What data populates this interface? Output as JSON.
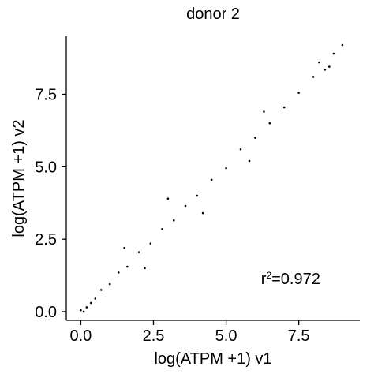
{
  "chart_data": {
    "type": "scatter",
    "title": "donor 2",
    "xlabel": "log(ATPM +1) v1",
    "ylabel": "log(ATPM +1) v2",
    "xlim": [
      -0.5,
      9.6
    ],
    "ylim": [
      -0.3,
      9.5
    ],
    "xticks": [
      0.0,
      2.5,
      5.0,
      7.5
    ],
    "yticks": [
      0.0,
      2.5,
      5.0,
      7.5
    ],
    "xtick_labels": [
      "0.0",
      "2.5",
      "5.0",
      "7.5"
    ],
    "ytick_labels": [
      "0.0",
      "2.5",
      "5.0",
      "7.5"
    ],
    "grid": false,
    "annotation": {
      "prefix": "r",
      "sup": "2",
      "rest": "=0.972",
      "x": 6.2,
      "y": 0.95
    },
    "point_color": "#000000",
    "series": [
      {
        "points": [
          [
            0.0,
            0.05
          ],
          [
            0.1,
            0.0
          ],
          [
            0.2,
            0.15
          ],
          [
            0.35,
            0.3
          ],
          [
            0.5,
            0.45
          ],
          [
            0.7,
            0.75
          ],
          [
            1.0,
            0.95
          ],
          [
            1.3,
            1.35
          ],
          [
            1.6,
            1.55
          ],
          [
            2.0,
            2.05
          ],
          [
            2.4,
            2.35
          ],
          [
            2.8,
            2.85
          ],
          [
            3.2,
            3.15
          ],
          [
            3.6,
            3.65
          ],
          [
            4.0,
            4.0
          ],
          [
            4.5,
            4.55
          ],
          [
            5.0,
            4.95
          ],
          [
            5.5,
            5.6
          ],
          [
            6.0,
            6.0
          ],
          [
            6.5,
            6.5
          ],
          [
            7.0,
            7.05
          ],
          [
            7.5,
            7.55
          ],
          [
            8.0,
            8.1
          ],
          [
            8.4,
            8.35
          ],
          [
            8.7,
            8.9
          ],
          [
            9.0,
            9.2
          ],
          [
            8.55,
            8.45
          ],
          [
            8.2,
            8.6
          ],
          [
            1.5,
            2.2
          ],
          [
            2.2,
            1.5
          ],
          [
            3.0,
            3.9
          ],
          [
            4.2,
            3.4
          ],
          [
            5.8,
            5.2
          ],
          [
            6.3,
            6.9
          ]
        ]
      }
    ]
  }
}
